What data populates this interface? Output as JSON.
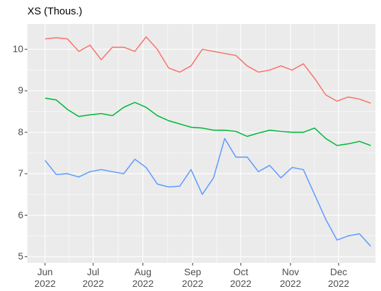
{
  "chart_data": {
    "type": "line",
    "title": "XS (Thous.)",
    "x": [
      "2022-06-01",
      "2022-06-08",
      "2022-06-15",
      "2022-06-22",
      "2022-06-29",
      "2022-07-06",
      "2022-07-13",
      "2022-07-20",
      "2022-07-27",
      "2022-08-03",
      "2022-08-10",
      "2022-08-17",
      "2022-08-24",
      "2022-08-31",
      "2022-09-07",
      "2022-09-14",
      "2022-09-21",
      "2022-09-28",
      "2022-10-05",
      "2022-10-12",
      "2022-10-19",
      "2022-10-26",
      "2022-11-02",
      "2022-11-09",
      "2022-11-16",
      "2022-11-23",
      "2022-11-30",
      "2022-12-07",
      "2022-12-14",
      "2022-12-21"
    ],
    "series": [
      {
        "color": "#F8766D",
        "values": [
          10.25,
          10.28,
          10.25,
          9.95,
          10.1,
          9.75,
          10.05,
          10.05,
          9.95,
          10.3,
          10.0,
          9.55,
          9.45,
          9.6,
          10.0,
          9.95,
          9.9,
          9.85,
          9.6,
          9.45,
          9.5,
          9.6,
          9.5,
          9.65,
          9.3,
          8.9,
          8.75,
          8.85,
          8.8,
          8.7
        ]
      },
      {
        "color": "#00BA38",
        "values": [
          8.82,
          8.78,
          8.55,
          8.38,
          8.42,
          8.45,
          8.4,
          8.6,
          8.72,
          8.6,
          8.4,
          8.28,
          8.2,
          8.12,
          8.1,
          8.05,
          8.05,
          8.02,
          7.9,
          7.98,
          8.05,
          8.02,
          8.0,
          8.0,
          8.1,
          7.85,
          7.68,
          7.72,
          7.78,
          7.68
        ]
      },
      {
        "color": "#619CFF",
        "values": [
          7.32,
          6.98,
          7.0,
          6.92,
          7.05,
          7.1,
          7.05,
          7.0,
          7.35,
          7.15,
          6.75,
          6.68,
          6.7,
          7.1,
          6.5,
          6.9,
          7.85,
          7.4,
          7.4,
          7.05,
          7.2,
          6.9,
          7.15,
          7.1,
          6.5,
          5.9,
          5.4,
          5.5,
          5.55,
          5.25
        ]
      }
    ],
    "xlim": [
      "2022-05-21",
      "2022-12-24"
    ],
    "xticks": [
      {
        "value": "2022-06-01",
        "label": "Jun\n2022"
      },
      {
        "value": "2022-07-01",
        "label": "Jul\n2022"
      },
      {
        "value": "2022-08-01",
        "label": "Aug\n2022"
      },
      {
        "value": "2022-09-01",
        "label": "Sep\n2022"
      },
      {
        "value": "2022-10-01",
        "label": "Oct\n2022"
      },
      {
        "value": "2022-11-01",
        "label": "Nov\n2022"
      },
      {
        "value": "2022-12-01",
        "label": "Dec\n2022"
      }
    ],
    "ylim": [
      4.85,
      10.61
    ],
    "yticks": [
      5,
      6,
      7,
      8,
      9,
      10
    ],
    "grid": true
  }
}
